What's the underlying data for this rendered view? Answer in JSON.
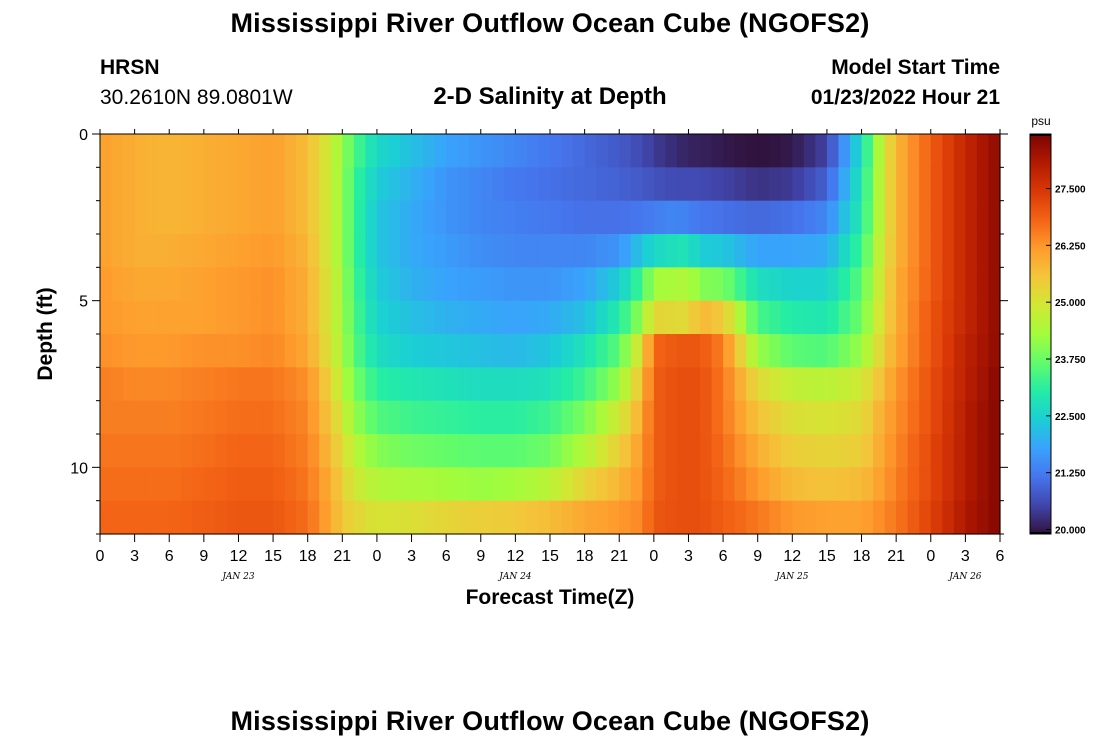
{
  "header": {
    "title": "Mississippi River Outflow Ocean Cube (NGOFS2)",
    "station_name": "HRSN",
    "station_coords": "30.2610N  89.0801W",
    "subtitle": "2-D Salinity at Depth",
    "model_start_label": "Model Start Time",
    "model_start_value": "01/23/2022 Hour 21"
  },
  "footer": {
    "title": "Mississippi River Outflow Ocean Cube (NGOFS2)"
  },
  "chart_data": {
    "type": "heatmap",
    "title": "2-D Salinity at Depth",
    "xlabel": "Forecast Time(Z)",
    "ylabel": "Depth (ft)",
    "colorbar_unit": "psu",
    "x_hours": [
      0,
      78
    ],
    "ylim": [
      0,
      12
    ],
    "vlim": [
      19.9,
      28.7
    ],
    "x_tick_labels": [
      "0",
      "3",
      "6",
      "9",
      "12",
      "15",
      "18",
      "21",
      "0",
      "3",
      "6",
      "9",
      "12",
      "15",
      "18",
      "21",
      "0",
      "3",
      "6",
      "9",
      "12",
      "15",
      "18",
      "21",
      "0",
      "3",
      "6"
    ],
    "date_labels": [
      {
        "hour": 12,
        "label": "JAN 23"
      },
      {
        "hour": 36,
        "label": "JAN 24"
      },
      {
        "hour": 60,
        "label": "JAN 25"
      },
      {
        "hour": 75,
        "label": "JAN 26"
      }
    ],
    "y_ticks": [
      0,
      5,
      10
    ],
    "colorbar_ticks": [
      {
        "value": 20.0,
        "label": "20.000"
      },
      {
        "value": 21.25,
        "label": "21.250"
      },
      {
        "value": 22.5,
        "label": "22.500"
      },
      {
        "value": 23.75,
        "label": "23.750"
      },
      {
        "value": 25.0,
        "label": "25.000"
      },
      {
        "value": 26.25,
        "label": "26.250"
      },
      {
        "value": 27.5,
        "label": "27.500"
      }
    ],
    "colormap": [
      "#30123b",
      "#4145ab",
      "#4675ed",
      "#39a2fc",
      "#1bcfd4",
      "#24eca6",
      "#61fc6c",
      "#a4fc3b",
      "#d1e834",
      "#f3c63a",
      "#fe9b2d",
      "#f36315",
      "#d93806",
      "#b11901",
      "#7a0403"
    ],
    "depth_levels": [
      0.5,
      1.5,
      2.5,
      3.5,
      4.5,
      5.5,
      6.5,
      7.5,
      8.5,
      9.5,
      10.5,
      11.5
    ],
    "profile_hours": [
      0,
      3,
      6,
      9,
      12,
      15,
      18,
      20,
      21,
      22,
      24,
      27,
      30,
      33,
      36,
      39,
      42,
      45,
      47,
      48,
      50,
      51,
      52,
      54,
      57,
      60,
      63,
      66,
      68,
      69,
      72,
      75,
      78
    ],
    "salinity_profiles": [
      [
        26.1,
        26.1,
        26.1,
        26.1,
        26.2,
        26.2,
        26.3,
        26.5,
        26.5,
        26.6,
        26.7,
        26.8
      ],
      [
        25.9,
        25.9,
        25.9,
        25.9,
        26.0,
        26.1,
        26.2,
        26.4,
        26.5,
        26.6,
        26.7,
        26.8
      ],
      [
        25.8,
        25.8,
        25.8,
        25.9,
        26.0,
        26.1,
        26.2,
        26.4,
        26.5,
        26.6,
        26.7,
        26.8
      ],
      [
        25.9,
        25.9,
        25.9,
        26.0,
        26.1,
        26.1,
        26.3,
        26.5,
        26.6,
        26.7,
        26.8,
        26.9
      ],
      [
        26.0,
        26.0,
        26.0,
        26.1,
        26.2,
        26.2,
        26.3,
        26.6,
        26.7,
        26.8,
        26.9,
        27.0
      ],
      [
        26.1,
        26.1,
        26.1,
        26.2,
        26.3,
        26.3,
        26.4,
        26.6,
        26.7,
        26.8,
        26.9,
        27.0
      ],
      [
        25.7,
        25.7,
        25.7,
        25.8,
        25.9,
        25.9,
        26.0,
        26.3,
        26.4,
        26.5,
        26.6,
        26.7
      ],
      [
        24.8,
        24.8,
        24.8,
        24.8,
        24.9,
        24.9,
        25.0,
        25.3,
        25.5,
        25.7,
        25.9,
        26.0
      ],
      [
        24.2,
        24.2,
        24.2,
        24.2,
        24.3,
        24.3,
        24.4,
        24.6,
        24.9,
        25.2,
        25.4,
        25.5
      ],
      [
        23.5,
        23.3,
        23.3,
        23.3,
        23.4,
        23.5,
        23.6,
        23.9,
        24.2,
        24.6,
        24.9,
        25.3
      ],
      [
        22.6,
        22.4,
        22.3,
        22.3,
        22.4,
        22.5,
        22.7,
        23.1,
        23.5,
        24.0,
        24.5,
        25.0
      ],
      [
        22.2,
        22.0,
        21.9,
        21.9,
        22.0,
        22.2,
        22.4,
        22.9,
        23.3,
        23.8,
        24.4,
        25.1
      ],
      [
        21.8,
        21.6,
        21.6,
        21.7,
        21.8,
        22.0,
        22.3,
        22.8,
        23.2,
        23.7,
        24.3,
        25.3
      ],
      [
        21.6,
        21.4,
        21.4,
        21.5,
        21.7,
        21.9,
        22.2,
        22.7,
        23.1,
        23.6,
        24.2,
        25.4
      ],
      [
        21.4,
        21.2,
        21.3,
        21.4,
        21.6,
        21.8,
        22.1,
        22.7,
        23.1,
        23.6,
        24.3,
        25.5
      ],
      [
        21.2,
        21.1,
        21.2,
        21.4,
        21.6,
        21.9,
        22.3,
        22.8,
        23.3,
        23.8,
        24.6,
        25.7
      ],
      [
        21.0,
        21.0,
        21.1,
        21.4,
        21.8,
        22.2,
        22.8,
        23.3,
        23.9,
        24.5,
        25.3,
        26.0
      ],
      [
        20.8,
        20.9,
        21.1,
        21.6,
        22.4,
        23.0,
        23.6,
        24.2,
        24.9,
        25.4,
        25.8,
        26.2
      ],
      [
        20.6,
        20.8,
        21.2,
        22.3,
        23.4,
        24.2,
        25.2,
        25.7,
        26.0,
        26.2,
        26.3,
        26.4
      ],
      [
        20.4,
        20.7,
        21.3,
        22.6,
        24.3,
        25.3,
        26.8,
        26.9,
        26.9,
        26.9,
        26.9,
        27.0
      ],
      [
        20.2,
        20.6,
        21.4,
        22.8,
        24.4,
        25.2,
        27.0,
        27.1,
        27.1,
        27.1,
        27.1,
        27.1
      ],
      [
        20.1,
        20.6,
        21.3,
        22.8,
        24.5,
        25.2,
        27.0,
        27.1,
        27.1,
        27.1,
        27.1,
        27.1
      ],
      [
        20.1,
        20.6,
        21.2,
        22.4,
        24.0,
        25.8,
        27.0,
        27.1,
        27.1,
        27.1,
        27.1,
        27.1
      ],
      [
        20.0,
        20.5,
        21.1,
        22.3,
        23.9,
        25.5,
        26.5,
        26.6,
        26.6,
        26.7,
        26.8,
        26.9
      ],
      [
        19.9,
        20.3,
        21.0,
        21.8,
        22.7,
        23.4,
        24.2,
        25.2,
        25.6,
        25.9,
        26.2,
        26.6
      ],
      [
        20.0,
        20.4,
        21.1,
        21.8,
        22.5,
        23.0,
        23.6,
        24.7,
        25.1,
        25.4,
        25.7,
        26.2
      ],
      [
        20.5,
        20.9,
        21.4,
        21.9,
        22.5,
        22.9,
        23.5,
        24.6,
        25.0,
        25.3,
        25.6,
        26.1
      ],
      [
        22.7,
        22.9,
        23.0,
        23.3,
        23.6,
        23.8,
        24.2,
        24.9,
        25.2,
        25.4,
        25.7,
        26.1
      ],
      [
        25.0,
        25.0,
        25.0,
        25.1,
        25.2,
        25.3,
        25.5,
        25.8,
        26.0,
        26.1,
        26.2,
        26.4
      ],
      [
        25.8,
        25.8,
        25.8,
        25.8,
        25.9,
        25.9,
        26.0,
        26.2,
        26.3,
        26.4,
        26.5,
        26.6
      ],
      [
        26.9,
        26.9,
        26.9,
        26.9,
        26.9,
        27.0,
        27.0,
        27.1,
        27.1,
        27.2,
        27.2,
        27.3
      ],
      [
        27.8,
        27.8,
        27.8,
        27.8,
        27.8,
        27.8,
        27.9,
        27.9,
        28.0,
        28.0,
        28.0,
        28.1
      ],
      [
        28.5,
        28.5,
        28.5,
        28.5,
        28.5,
        28.5,
        28.5,
        28.6,
        28.6,
        28.6,
        28.6,
        28.6
      ]
    ]
  }
}
